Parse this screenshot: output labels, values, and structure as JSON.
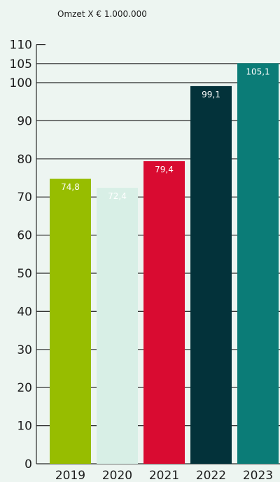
{
  "chart_data": {
    "type": "bar",
    "title": "Omzet X € 1.000.000",
    "xlabel": "",
    "ylabel": "",
    "categories": [
      "2019",
      "2020",
      "2021",
      "2022",
      "2023"
    ],
    "values": [
      74.8,
      72.4,
      79.4,
      99.1,
      105.1
    ],
    "value_labels": [
      "74,8",
      "72,4",
      "79,4",
      "99,1",
      "105,1"
    ],
    "bar_colors": [
      "#97bd00",
      "#d8efe6",
      "#d90b31",
      "#03323a",
      "#0b7c77"
    ],
    "label_colors": [
      "#ffffff",
      "#ffffff",
      "#ffffff",
      "#ffffff",
      "#ffffff"
    ],
    "yticks": [
      0,
      10,
      20,
      30,
      40,
      50,
      60,
      70,
      80,
      90,
      100,
      105,
      110
    ],
    "ylim": [
      0,
      110
    ],
    "grid": true,
    "grid_color": "#2a2a2a",
    "background": "#edf5f1"
  }
}
